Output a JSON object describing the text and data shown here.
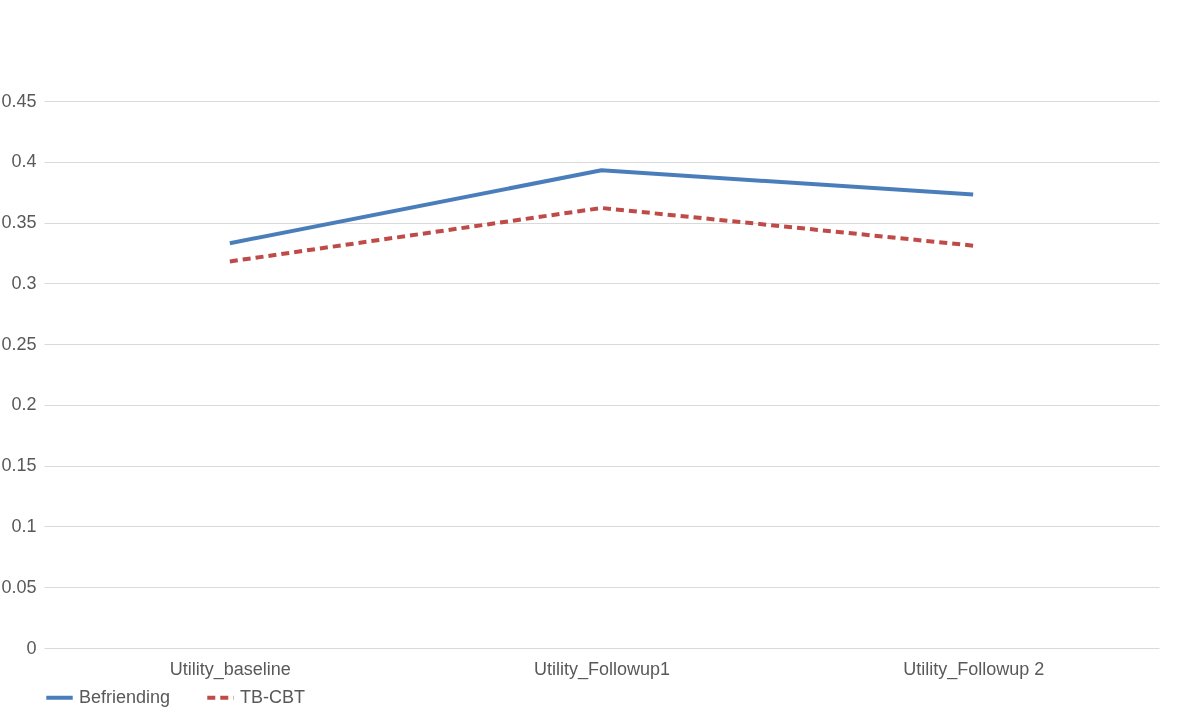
{
  "chart_data": {
    "type": "line",
    "categories": [
      "Utility_baseline",
      "Utility_Followup1",
      "Utility_Followup 2"
    ],
    "series": [
      {
        "name": "Befriending",
        "color": "#4a7ebb",
        "line_style": "solid",
        "values": [
          0.333,
          0.393,
          0.373
        ]
      },
      {
        "name": "TB-CBT",
        "color": "#be4b48",
        "line_style": "dashed",
        "values": [
          0.318,
          0.362,
          0.331
        ]
      }
    ],
    "ylim": [
      0,
      0.45
    ],
    "yticks": [
      0,
      0.05,
      0.1,
      0.15,
      0.2,
      0.25,
      0.3,
      0.35,
      0.4,
      0.45
    ],
    "grid": "y",
    "legend": "bottom",
    "marker": "none"
  }
}
